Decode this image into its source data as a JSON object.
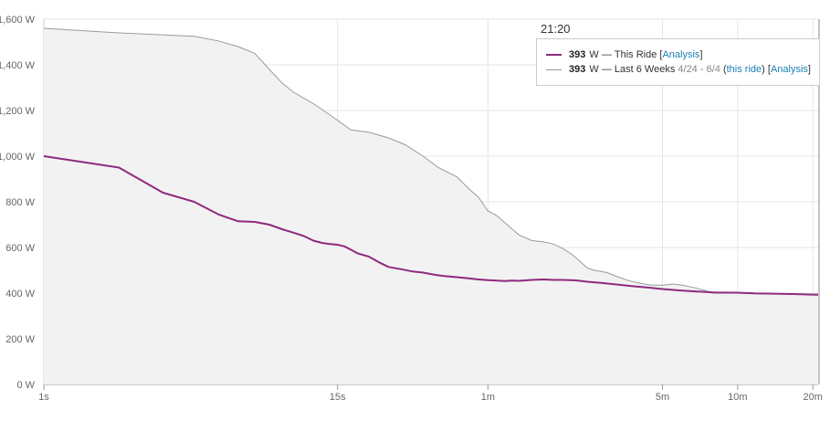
{
  "hover_time": "21:20",
  "legend": {
    "ride": {
      "value": "393",
      "unit": "W",
      "dash": "—",
      "name": "This Ride",
      "link_open": "[",
      "link_label": "Analysis",
      "link_close": "]"
    },
    "history": {
      "value": "393",
      "unit": "W",
      "dash": "—",
      "name": "Last 6 Weeks",
      "range": "4/24 - 6/4",
      "paren_open": "(",
      "this_ride_label": "this ride",
      "paren_close": ")",
      "link_open": "[",
      "link_label": "Analysis",
      "link_close": "]"
    }
  },
  "colors": {
    "ride": "#8e2a7e",
    "history": "#9a9a9a",
    "fill": "#f2f2f2",
    "grid": "#e6e6e6"
  },
  "chart_data": {
    "type": "area",
    "x_scale": "log",
    "x_unit": "seconds",
    "ylim": [
      0,
      1600
    ],
    "xlim": [
      1,
      1260
    ],
    "y_ticks": [
      {
        "value": 0,
        "label": "0 W"
      },
      {
        "value": 200,
        "label": "200 W"
      },
      {
        "value": 400,
        "label": "400 W"
      },
      {
        "value": 600,
        "label": "600 W"
      },
      {
        "value": 800,
        "label": "800 W"
      },
      {
        "value": 1000,
        "label": "1,000 W"
      },
      {
        "value": 1200,
        "label": "1,200 W"
      },
      {
        "value": 1400,
        "label": "1,400 W"
      },
      {
        "value": 1600,
        "label": "1,600 W"
      }
    ],
    "x_ticks": [
      {
        "value": 1,
        "label": "1s"
      },
      {
        "value": 15,
        "label": "15s"
      },
      {
        "value": 60,
        "label": "1m"
      },
      {
        "value": 300,
        "label": "5m"
      },
      {
        "value": 600,
        "label": "10m"
      },
      {
        "value": 1200,
        "label": "20m"
      }
    ],
    "grid": true,
    "series": [
      {
        "name": "Last 6 Weeks",
        "points": [
          [
            1,
            1560
          ],
          [
            2,
            1540
          ],
          [
            4,
            1525
          ],
          [
            5,
            1505
          ],
          [
            6,
            1480
          ],
          [
            7,
            1450
          ],
          [
            8,
            1380
          ],
          [
            9,
            1320
          ],
          [
            10,
            1280
          ],
          [
            12,
            1230
          ],
          [
            14,
            1180
          ],
          [
            17,
            1115
          ],
          [
            20,
            1105
          ],
          [
            24,
            1080
          ],
          [
            28,
            1050
          ],
          [
            33,
            1000
          ],
          [
            38,
            950
          ],
          [
            45,
            910
          ],
          [
            50,
            860
          ],
          [
            55,
            820
          ],
          [
            60,
            760
          ],
          [
            65,
            740
          ],
          [
            70,
            710
          ],
          [
            75,
            680
          ],
          [
            80,
            655
          ],
          [
            90,
            630
          ],
          [
            100,
            625
          ],
          [
            110,
            615
          ],
          [
            120,
            595
          ],
          [
            130,
            570
          ],
          [
            140,
            540
          ],
          [
            150,
            510
          ],
          [
            160,
            500
          ],
          [
            180,
            490
          ],
          [
            200,
            470
          ],
          [
            220,
            455
          ],
          [
            240,
            445
          ],
          [
            270,
            435
          ],
          [
            300,
            435
          ],
          [
            330,
            440
          ],
          [
            360,
            435
          ],
          [
            400,
            425
          ],
          [
            450,
            410
          ],
          [
            480,
            400
          ],
          [
            600,
            400
          ],
          [
            800,
            398
          ],
          [
            1000,
            396
          ],
          [
            1260,
            395
          ]
        ]
      },
      {
        "name": "This Ride",
        "points": [
          [
            1,
            1000
          ],
          [
            2,
            950
          ],
          [
            3,
            840
          ],
          [
            4,
            800
          ],
          [
            5,
            745
          ],
          [
            6,
            715
          ],
          [
            7,
            712
          ],
          [
            8,
            700
          ],
          [
            9,
            680
          ],
          [
            10,
            665
          ],
          [
            11,
            650
          ],
          [
            12,
            630
          ],
          [
            13,
            620
          ],
          [
            14,
            615
          ],
          [
            15,
            612
          ],
          [
            16,
            605
          ],
          [
            17,
            590
          ],
          [
            18,
            575
          ],
          [
            20,
            560
          ],
          [
            22,
            535
          ],
          [
            24,
            515
          ],
          [
            27,
            505
          ],
          [
            30,
            495
          ],
          [
            33,
            490
          ],
          [
            37,
            480
          ],
          [
            40,
            475
          ],
          [
            45,
            470
          ],
          [
            50,
            465
          ],
          [
            55,
            460
          ],
          [
            60,
            457
          ],
          [
            65,
            455
          ],
          [
            70,
            453
          ],
          [
            75,
            455
          ],
          [
            80,
            454
          ],
          [
            90,
            458
          ],
          [
            100,
            460
          ],
          [
            110,
            458
          ],
          [
            120,
            458
          ],
          [
            135,
            456
          ],
          [
            150,
            450
          ],
          [
            170,
            445
          ],
          [
            200,
            437
          ],
          [
            230,
            430
          ],
          [
            260,
            425
          ],
          [
            300,
            418
          ],
          [
            350,
            412
          ],
          [
            400,
            408
          ],
          [
            450,
            405
          ],
          [
            480,
            403
          ],
          [
            600,
            402
          ],
          [
            700,
            399
          ],
          [
            800,
            398
          ],
          [
            1000,
            396
          ],
          [
            1260,
            393
          ]
        ]
      }
    ]
  }
}
